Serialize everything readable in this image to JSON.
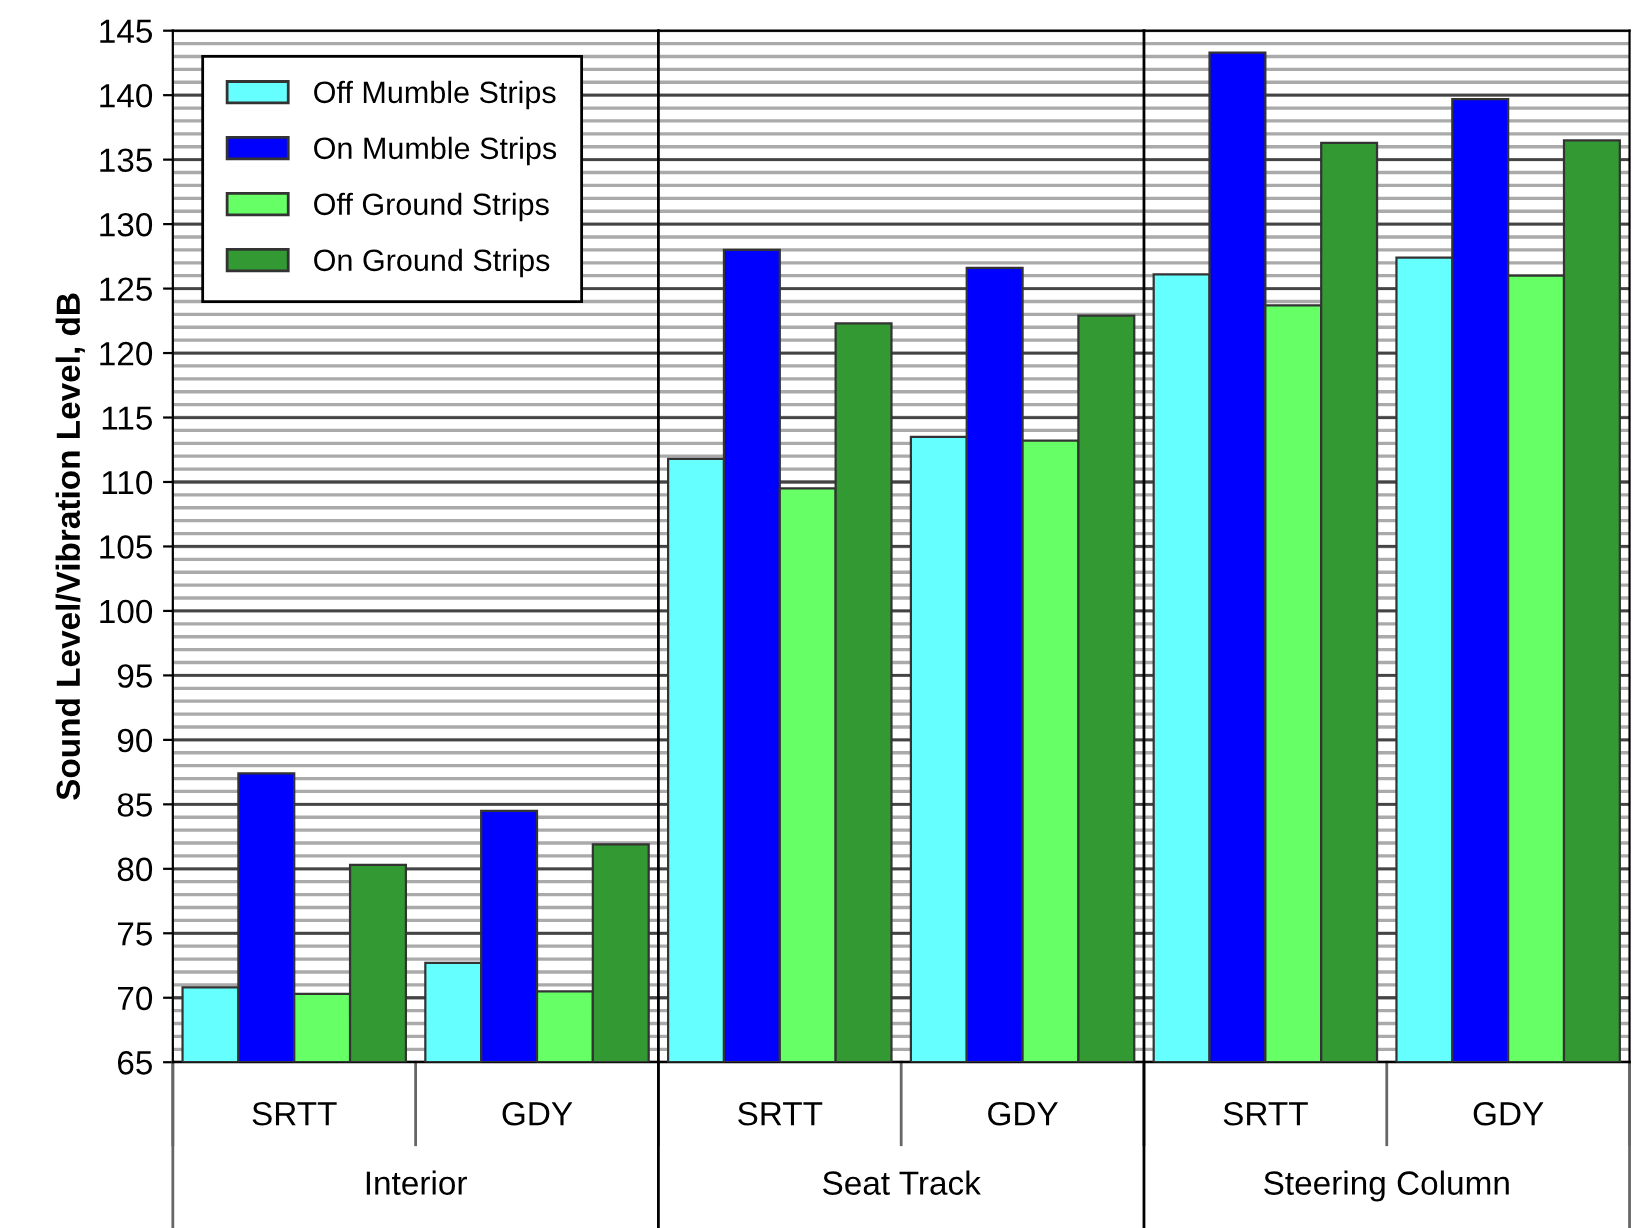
{
  "chart_data": {
    "type": "bar",
    "ylabel": "Sound Level/Vibration Level, dB",
    "categories": [
      "SRTT",
      "GDY",
      "SRTT",
      "GDY",
      "SRTT",
      "GDY"
    ],
    "series": [
      {
        "name": "Off Mumble Strips",
        "color": "#66ffff",
        "values": [
          70.8,
          72.7,
          111.8,
          113.5,
          126.1,
          127.4
        ]
      },
      {
        "name": "On Mumble Strips",
        "color": "#0000ff",
        "values": [
          87.4,
          84.5,
          128.0,
          126.6,
          143.3,
          139.7
        ]
      },
      {
        "name": "Off Ground Strips",
        "color": "#66ff66",
        "values": [
          70.3,
          70.5,
          109.5,
          113.2,
          123.7,
          126.0
        ]
      },
      {
        "name": "On Ground Strips",
        "color": "#339933",
        "values": [
          80.3,
          81.9,
          122.3,
          122.9,
          136.3,
          136.5
        ]
      }
    ],
    "annotations": [
      "Interior",
      "Seat Track",
      "Steering Column"
    ],
    "ylim": [
      65,
      145
    ],
    "yticks": [
      65,
      70,
      75,
      80,
      85,
      90,
      95,
      100,
      105,
      110,
      115,
      120,
      125,
      130,
      135,
      140,
      145
    ],
    "grid": "y",
    "legend": "top left"
  }
}
